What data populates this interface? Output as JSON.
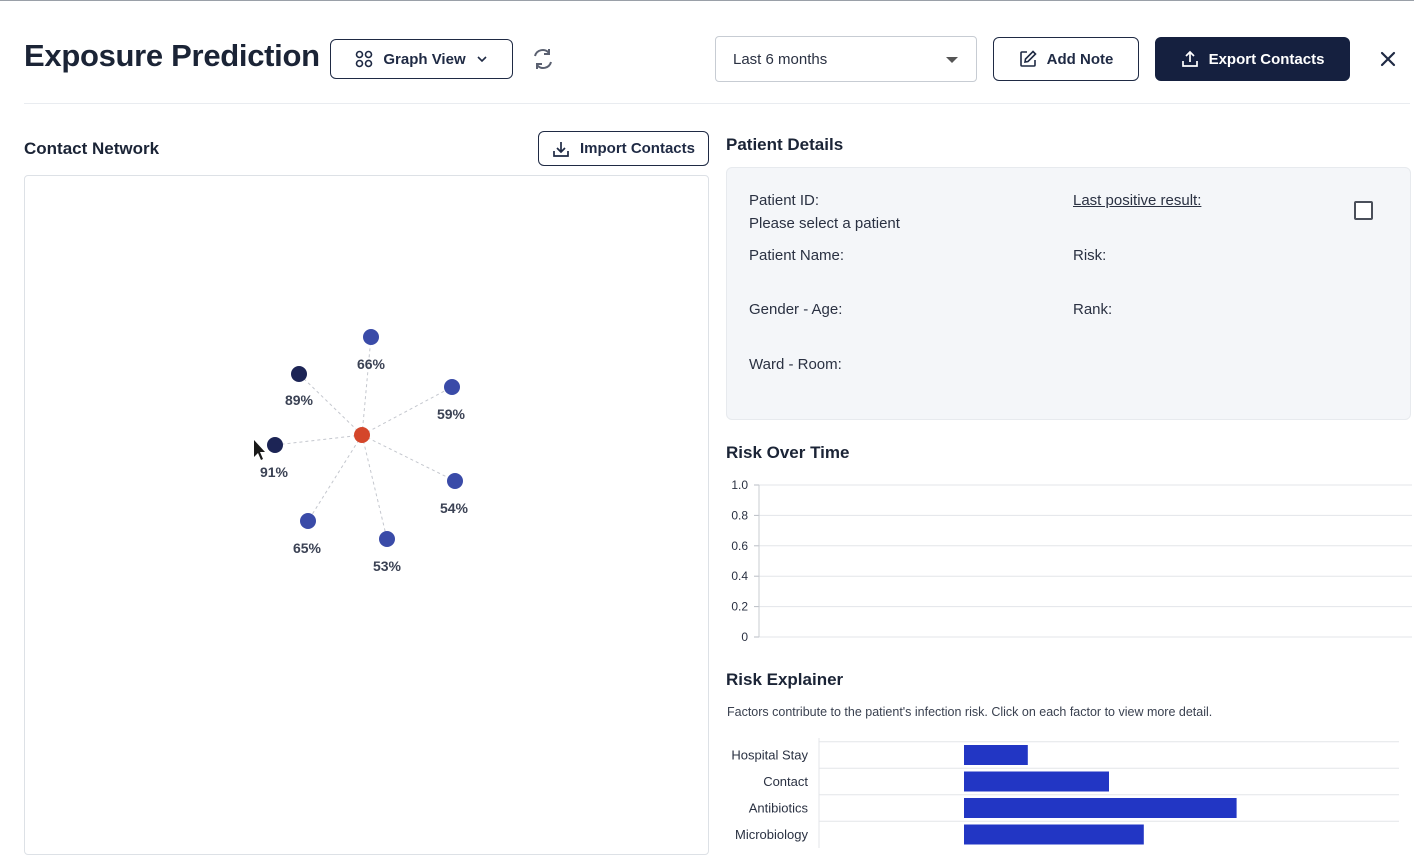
{
  "header": {
    "title": "Exposure Prediction",
    "view_toggle_label": "Graph View",
    "time_range": "Last 6 months",
    "add_note_label": "Add Note",
    "export_label": "Export Contacts"
  },
  "network": {
    "title": "Contact Network",
    "import_label": "Import Contacts",
    "center_color": "#d4462a",
    "contacts": [
      {
        "label": "66%",
        "color": "#3a4ba8"
      },
      {
        "label": "59%",
        "color": "#3a4ba8"
      },
      {
        "label": "54%",
        "color": "#3a4ba8"
      },
      {
        "label": "53%",
        "color": "#3a4ba8"
      },
      {
        "label": "65%",
        "color": "#3a4ba8"
      },
      {
        "label": "91%",
        "color": "#1c2455"
      },
      {
        "label": "89%",
        "color": "#1c2455"
      }
    ]
  },
  "patient": {
    "title": "Patient Details",
    "id_label": "Patient ID:",
    "id_value": "Please select a patient",
    "name_label": "Patient Name:",
    "gender_age_label": "Gender - Age:",
    "ward_room_label": "Ward - Room:",
    "last_positive_label": "Last positive result:",
    "risk_label": "Risk:",
    "rank_label": "Rank:"
  },
  "risk_over_time": {
    "title": "Risk Over Time",
    "y_ticks": [
      "1.0",
      "0.8",
      "0.6",
      "0.4",
      "0.2",
      "0"
    ]
  },
  "risk_explainer": {
    "title": "Risk Explainer",
    "description": "Factors contribute to the patient's infection risk. Click on each factor to view more detail.",
    "bar_color": "#2236c4"
  },
  "chart_data": {
    "type": "bar",
    "orientation": "horizontal",
    "title": "Risk Explainer",
    "categories": [
      "Hospital Stay",
      "Contact",
      "Antibiotics",
      "Microbiology"
    ],
    "ranges": [
      [
        0.25,
        0.36
      ],
      [
        0.25,
        0.5
      ],
      [
        0.25,
        0.72
      ],
      [
        0.25,
        0.56
      ]
    ],
    "xlim": [
      0,
      1
    ]
  }
}
